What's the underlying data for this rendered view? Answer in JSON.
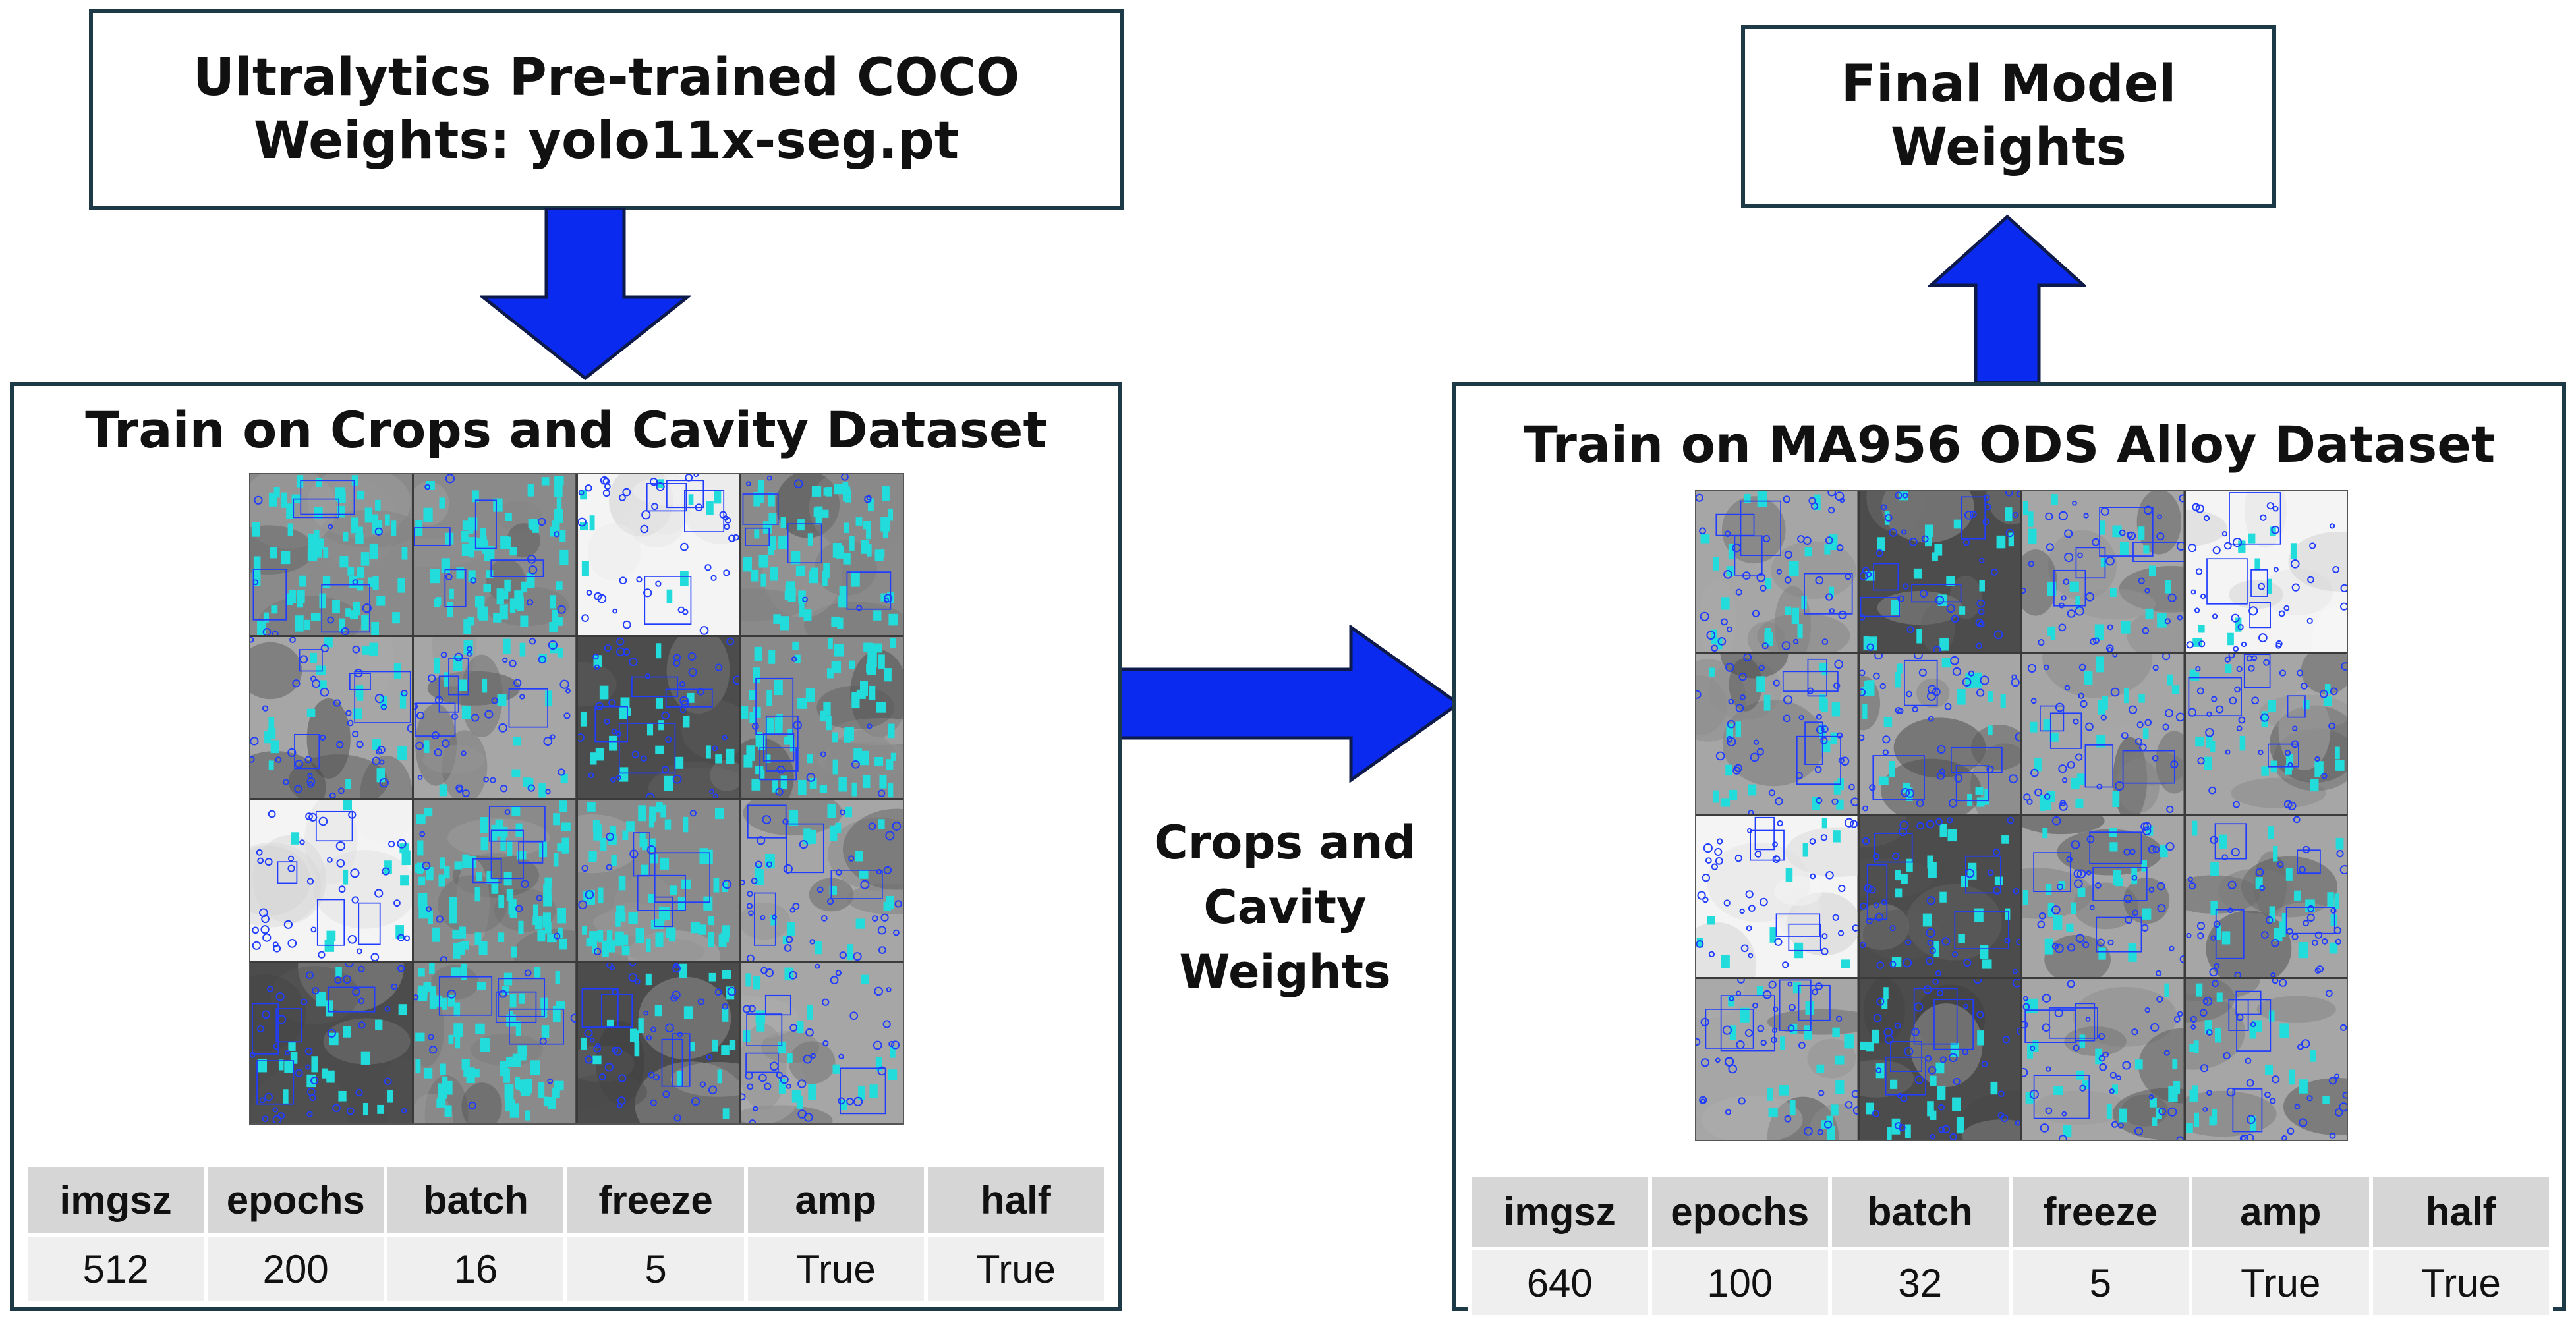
{
  "coco_box": {
    "line1": "Ultralytics Pre-trained COCO",
    "line2": "Weights:  yolo11x-seg.pt"
  },
  "final_box": {
    "line1": "Final Model",
    "line2": "Weights"
  },
  "crops_weights_label": {
    "line1": "Crops and",
    "line2": "Cavity",
    "line3": "Weights"
  },
  "left_panel": {
    "title": "Train on Crops and Cavity Dataset",
    "headers": [
      "imgsz",
      "epochs",
      "batch",
      "freeze",
      "amp",
      "half"
    ],
    "values": [
      "512",
      "200",
      "16",
      "5",
      "True",
      "True"
    ]
  },
  "right_panel": {
    "title": "Train on MA956 ODS Alloy Dataset",
    "headers": [
      "imgsz",
      "epochs",
      "batch",
      "freeze",
      "amp",
      "half"
    ],
    "values": [
      "640",
      "100",
      "32",
      "5",
      "True",
      "True"
    ]
  },
  "colors": {
    "arrow_fill": "#0a2af0",
    "arrow_stroke": "#0d1a4a",
    "box_border": "#1e3a46",
    "cyan_mask": "#22dcdc",
    "blue_outline": "#1f3cff"
  },
  "mosaic_left": {
    "tiles": [
      "cyan",
      "cyan",
      "white",
      "cyan",
      "gray",
      "gray",
      "dark",
      "cyan",
      "white",
      "cyan",
      "cyan",
      "gray",
      "dark",
      "cyan",
      "dark",
      "gray"
    ]
  },
  "mosaic_right": {
    "tiles": [
      "gray",
      "dark",
      "gray",
      "white",
      "gray",
      "gray",
      "gray",
      "gray",
      "white",
      "dark",
      "gray",
      "gray",
      "gray",
      "dark",
      "gray",
      "gray"
    ]
  }
}
